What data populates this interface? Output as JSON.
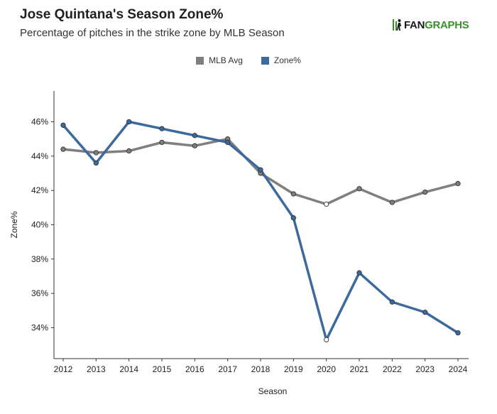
{
  "header": {
    "title": "Jose Quintana's Season Zone%",
    "subtitle": "Percentage of pitches in the strike zone by MLB Season",
    "logo_text_a": "FAN",
    "logo_text_b": "GRAPHS"
  },
  "colors": {
    "mlb_avg": "#7f7f7f",
    "zone_pct": "#3d6a9c",
    "axis": "#333333",
    "point_fill_mlb": "#7f7f7f",
    "point_fill_zone": "#3d6a9c"
  },
  "chart_data": {
    "type": "line",
    "xlabel": "Season",
    "ylabel": "Zone%",
    "x": [
      2012,
      2013,
      2014,
      2015,
      2016,
      2017,
      2018,
      2019,
      2020,
      2021,
      2022,
      2023,
      2024
    ],
    "x_tick_labels": [
      "2012",
      "2013",
      "2014",
      "2015",
      "2016",
      "2017",
      "2018",
      "2019",
      "2020",
      "2021",
      "2022",
      "2023",
      "2024"
    ],
    "ylim": [
      32.2,
      47.8
    ],
    "y_ticks": [
      34,
      36,
      38,
      40,
      42,
      44,
      46
    ],
    "y_tick_labels": [
      "34%",
      "36%",
      "38%",
      "40%",
      "42%",
      "44%",
      "46%"
    ],
    "legend_position": "top-center",
    "grid": false,
    "series": [
      {
        "name": "MLB Avg",
        "values": [
          44.4,
          44.2,
          44.3,
          44.8,
          44.6,
          45.0,
          43.0,
          41.8,
          41.2,
          42.1,
          41.3,
          41.9,
          42.4
        ]
      },
      {
        "name": "Zone%",
        "values": [
          45.8,
          43.6,
          46.0,
          45.6,
          45.2,
          44.8,
          43.2,
          40.4,
          33.3,
          37.2,
          35.5,
          34.9,
          33.7
        ]
      }
    ]
  }
}
